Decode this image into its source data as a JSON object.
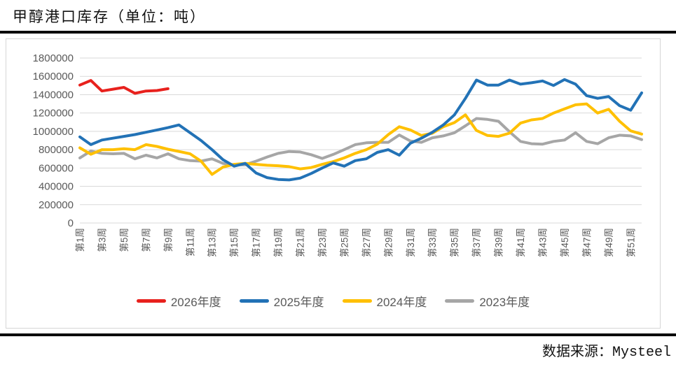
{
  "page": {
    "title": "甲醇港口库存（单位：吨）",
    "source_label": "数据来源：Mysteel"
  },
  "chart_data": {
    "type": "line",
    "title": "甲醇港口库存（单位：吨）",
    "grid": true,
    "legend_position": "bottom",
    "x_weeks": 52,
    "x_tick_labels": [
      "第1周",
      "第3周",
      "第5周",
      "第7周",
      "第9周",
      "第11周",
      "第13周",
      "第15周",
      "第17周",
      "第19周",
      "第21周",
      "第23周",
      "第25周",
      "第27周",
      "第29周",
      "第31周",
      "第33周",
      "第35周",
      "第37周",
      "第39周",
      "第41周",
      "第43周",
      "第45周",
      "第47周",
      "第49周",
      "第51周"
    ],
    "ylim": [
      0,
      1800000
    ],
    "y_tick_step": 200000,
    "y_tick_labels": [
      "1800000",
      "1600000",
      "1400000",
      "1200000",
      "1000000",
      "800000",
      "600000",
      "400000",
      "200000",
      "0"
    ],
    "colors": {
      "grid": "#d9d9d9",
      "axis_text": "#595959",
      "frame_border": "#d6d6d6"
    },
    "series": [
      {
        "name": "2026年度",
        "color": "#e8211d",
        "values": [
          1505000,
          1555000,
          1440000,
          1460000,
          1480000,
          1415000,
          1440000,
          1445000,
          1465000
        ]
      },
      {
        "name": "2025年度",
        "color": "#2272b6",
        "values": [
          940000,
          855000,
          905000,
          925000,
          945000,
          965000,
          990000,
          1015000,
          1040000,
          1070000,
          985000,
          900000,
          800000,
          690000,
          620000,
          650000,
          545000,
          495000,
          475000,
          470000,
          490000,
          540000,
          600000,
          655000,
          620000,
          680000,
          700000,
          770000,
          800000,
          740000,
          870000,
          925000,
          990000,
          1070000,
          1180000,
          1360000,
          1560000,
          1505000,
          1505000,
          1560000,
          1515000,
          1530000,
          1550000,
          1500000,
          1565000,
          1515000,
          1390000,
          1360000,
          1380000,
          1280000,
          1230000,
          1420000
        ]
      },
      {
        "name": "2024年度",
        "color": "#ffc000",
        "values": [
          820000,
          750000,
          800000,
          800000,
          810000,
          800000,
          855000,
          835000,
          805000,
          780000,
          755000,
          675000,
          530000,
          610000,
          640000,
          650000,
          640000,
          630000,
          625000,
          615000,
          590000,
          605000,
          640000,
          670000,
          710000,
          760000,
          800000,
          860000,
          965000,
          1050000,
          1015000,
          955000,
          980000,
          1050000,
          1095000,
          1180000,
          1010000,
          955000,
          945000,
          980000,
          1090000,
          1125000,
          1140000,
          1200000,
          1245000,
          1290000,
          1300000,
          1200000,
          1240000,
          1110000,
          1005000,
          970000
        ]
      },
      {
        "name": "2023年度",
        "color": "#a6a6a6",
        "values": [
          710000,
          785000,
          760000,
          755000,
          760000,
          700000,
          740000,
          710000,
          755000,
          700000,
          680000,
          675000,
          700000,
          650000,
          635000,
          635000,
          675000,
          720000,
          760000,
          780000,
          775000,
          745000,
          705000,
          748000,
          800000,
          855000,
          875000,
          880000,
          880000,
          960000,
          895000,
          880000,
          930000,
          950000,
          985000,
          1060000,
          1140000,
          1130000,
          1110000,
          995000,
          890000,
          865000,
          860000,
          890000,
          905000,
          985000,
          890000,
          865000,
          930000,
          958000,
          950000,
          910000
        ]
      }
    ]
  }
}
